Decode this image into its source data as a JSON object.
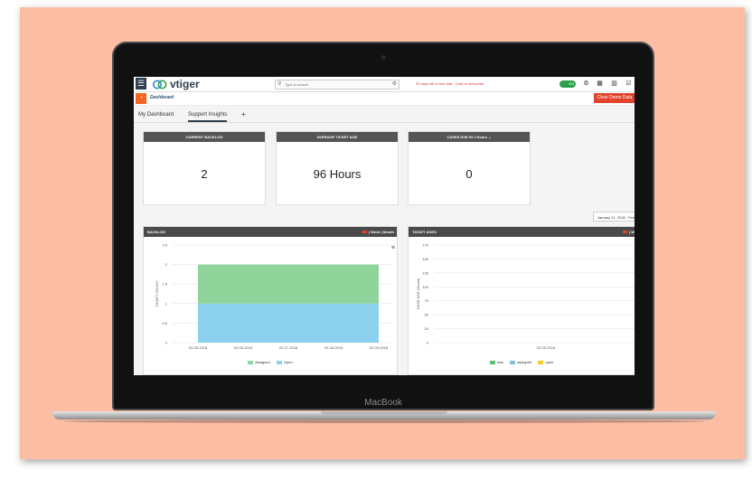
{
  "device": {
    "brand": "MacBook"
  },
  "topbar": {
    "logo_text": "vtiger",
    "search_placeholder": "Type to search",
    "trial_text": "30 days left in free trial - Click to subscribe",
    "toggle_label": "ON"
  },
  "module": {
    "title": "Dashboard",
    "clear_button": "Clear Demo Data"
  },
  "tabs": [
    {
      "label": "My Dashboard",
      "active": false
    },
    {
      "label": "Support Insights",
      "active": true
    }
  ],
  "tab_add": "+",
  "cards": [
    {
      "title": "CURRENT BACKLOG",
      "value": "2"
    },
    {
      "title": "AVERAGE TICKET AGE",
      "value": "96 Hours"
    },
    {
      "title": "CASES DUE IN 1 Hours ⌄",
      "value": "0"
    }
  ],
  "date_range": "January 11, 2018 - Feb",
  "backlog_widget": {
    "title": "BACKLOG",
    "links": "| Week | Month"
  },
  "ticket_ages_widget": {
    "title": "TICKET AGES",
    "links": "| W"
  },
  "chart_data": [
    {
      "type": "area",
      "title": "BACKLOG",
      "ylabel": "TICKET COUNT",
      "xlabel": "",
      "x": [
        "02-05-2018",
        "02-06-2018",
        "02-07-2018",
        "02-08-2018",
        "02-09-2018"
      ],
      "yticks": [
        0,
        0.5,
        1,
        1.5,
        2,
        2.5
      ],
      "ylim": [
        0,
        2.5
      ],
      "stacked": true,
      "series": [
        {
          "name": "Assigned",
          "color": "#8fd49b",
          "values": [
            1,
            1,
            1,
            1,
            1
          ]
        },
        {
          "name": "Open",
          "color": "#8cd2ee",
          "values": [
            1,
            1,
            1,
            1,
            1
          ]
        }
      ]
    },
    {
      "type": "line",
      "title": "TICKET AGES",
      "ylabel": "CASE AGE (Hours)",
      "xlabel": "",
      "x": [
        "02-05-2018"
      ],
      "yticks": [
        0,
        25,
        50,
        75,
        100,
        125,
        150,
        175
      ],
      "ylim": [
        0,
        175
      ],
      "series": [
        {
          "name": "new",
          "color": "#5cbf73"
        },
        {
          "name": "assigned",
          "color": "#7fc4d9"
        },
        {
          "name": "open",
          "color": "#f0d020"
        }
      ]
    }
  ]
}
